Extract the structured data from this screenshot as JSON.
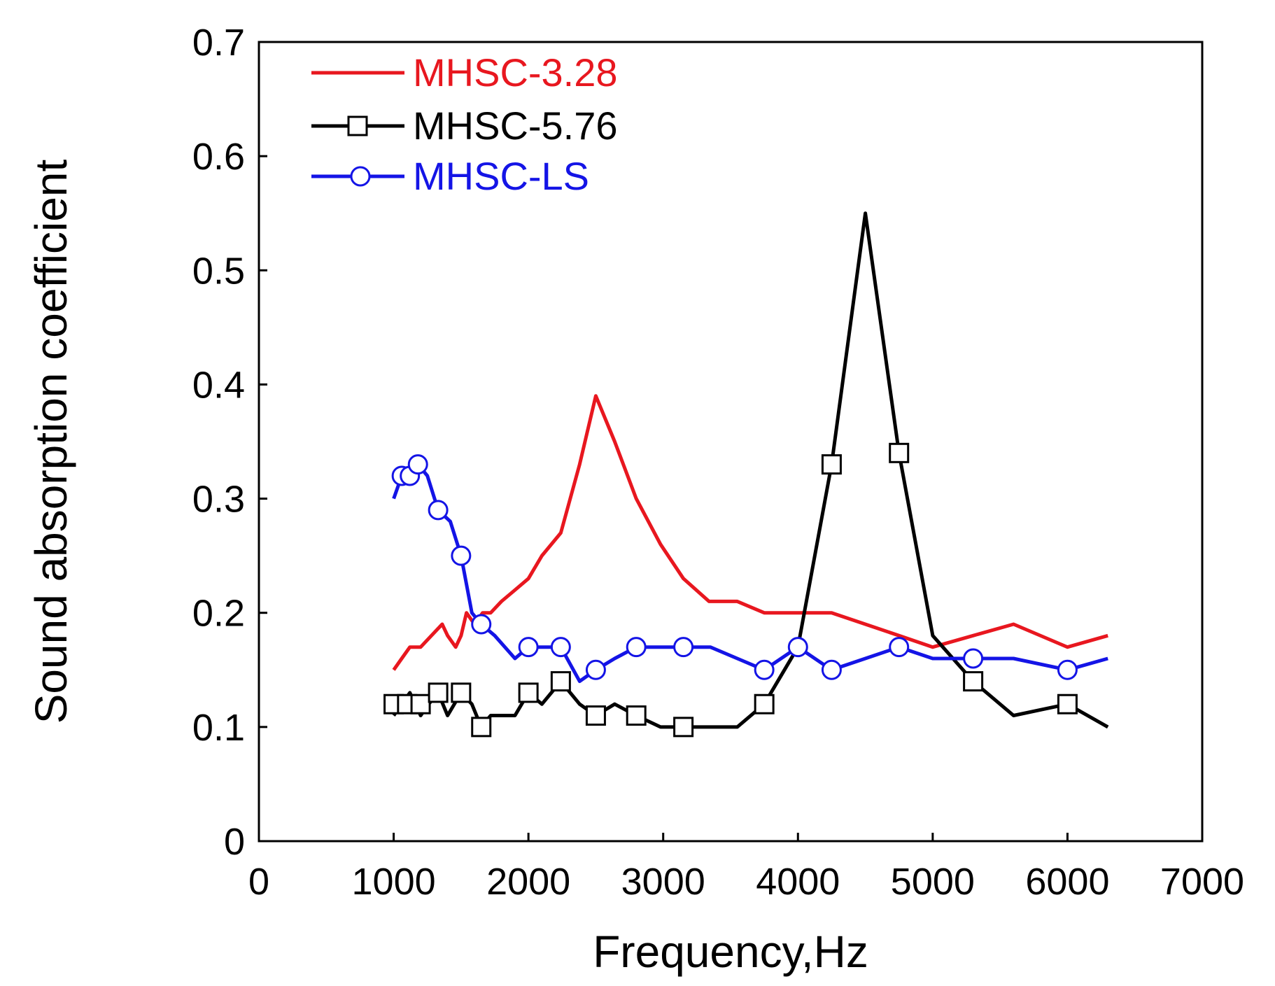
{
  "chart_data": {
    "type": "line",
    "title": "",
    "xlabel": "Frequency,Hz",
    "ylabel": "Sound absorption coefficient",
    "xlim": [
      0,
      7000
    ],
    "ylim": [
      0,
      0.7
    ],
    "xticks": [
      0,
      1000,
      2000,
      3000,
      4000,
      5000,
      6000,
      7000
    ],
    "yticks": [
      0,
      0.1,
      0.2,
      0.3,
      0.4,
      0.5,
      0.6,
      0.7
    ],
    "xtick_labels": [
      "0",
      "1000",
      "2000",
      "3000",
      "4000",
      "5000",
      "6000",
      "7000"
    ],
    "ytick_labels": [
      "0",
      "0.1",
      "0.2",
      "0.3",
      "0.4",
      "0.5",
      "0.6",
      "0.7"
    ],
    "grid": false,
    "legend_position": "top-left",
    "series": [
      {
        "name": "MHSC-3.28",
        "color": "#e8171f",
        "marker": "none",
        "x": [
          1000,
          1060,
          1120,
          1200,
          1280,
          1360,
          1400,
          1460,
          1500,
          1540,
          1600,
          1660,
          1720,
          1800,
          1900,
          2000,
          2100,
          2240,
          2380,
          2500,
          2640,
          2800,
          2980,
          3150,
          3340,
          3550,
          3750,
          4000,
          4250,
          4500,
          4750,
          5000,
          5300,
          5600,
          6000,
          6300
        ],
        "values": [
          0.15,
          0.16,
          0.17,
          0.17,
          0.18,
          0.19,
          0.18,
          0.17,
          0.18,
          0.2,
          0.19,
          0.2,
          0.2,
          0.21,
          0.22,
          0.23,
          0.25,
          0.27,
          0.33,
          0.39,
          0.35,
          0.3,
          0.26,
          0.23,
          0.21,
          0.21,
          0.2,
          0.2,
          0.2,
          0.19,
          0.18,
          0.17,
          0.18,
          0.19,
          0.17,
          0.18
        ]
      },
      {
        "name": "MHSC-5.76",
        "color": "#000000",
        "marker": "square",
        "x": [
          1000,
          1060,
          1120,
          1200,
          1260,
          1330,
          1400,
          1500,
          1580,
          1650,
          1720,
          1800,
          1900,
          2000,
          2100,
          2240,
          2380,
          2500,
          2640,
          2800,
          2980,
          3150,
          3350,
          3550,
          3750,
          4000,
          4250,
          4500,
          4750,
          5000,
          5300,
          5600,
          6000,
          6300
        ],
        "values": [
          0.11,
          0.12,
          0.13,
          0.11,
          0.12,
          0.13,
          0.11,
          0.13,
          0.12,
          0.1,
          0.11,
          0.11,
          0.11,
          0.13,
          0.12,
          0.14,
          0.12,
          0.11,
          0.12,
          0.11,
          0.1,
          0.1,
          0.1,
          0.1,
          0.12,
          0.17,
          0.33,
          0.55,
          0.34,
          0.18,
          0.14,
          0.11,
          0.12,
          0.1
        ],
        "marker_x": [
          1000,
          1100,
          1200,
          1330,
          1500,
          1650,
          2000,
          2240,
          2500,
          2800,
          3150,
          3750,
          4250,
          4750,
          5300,
          6000
        ],
        "marker_values": [
          0.12,
          0.12,
          0.12,
          0.13,
          0.13,
          0.1,
          0.13,
          0.14,
          0.11,
          0.11,
          0.1,
          0.12,
          0.33,
          0.34,
          0.14,
          0.12
        ]
      },
      {
        "name": "MHSC-LS",
        "color": "#1414e6",
        "marker": "circle",
        "x": [
          1000,
          1060,
          1120,
          1180,
          1250,
          1330,
          1420,
          1500,
          1580,
          1650,
          1750,
          1900,
          2000,
          2120,
          2240,
          2380,
          2500,
          2640,
          2800,
          3000,
          3150,
          3350,
          3550,
          3750,
          4000,
          4250,
          4500,
          4750,
          5000,
          5300,
          5600,
          6000,
          6300
        ],
        "values": [
          0.3,
          0.32,
          0.32,
          0.33,
          0.32,
          0.29,
          0.28,
          0.25,
          0.2,
          0.19,
          0.18,
          0.16,
          0.17,
          0.17,
          0.17,
          0.14,
          0.15,
          0.16,
          0.17,
          0.17,
          0.17,
          0.17,
          0.16,
          0.15,
          0.17,
          0.15,
          0.16,
          0.17,
          0.16,
          0.16,
          0.16,
          0.15,
          0.16
        ],
        "marker_x": [
          1060,
          1120,
          1180,
          1330,
          1500,
          1650,
          2000,
          2240,
          2500,
          2800,
          3150,
          3750,
          4000,
          4250,
          4750,
          5300,
          6000
        ],
        "marker_values": [
          0.32,
          0.32,
          0.33,
          0.29,
          0.25,
          0.19,
          0.17,
          0.17,
          0.15,
          0.17,
          0.17,
          0.15,
          0.17,
          0.15,
          0.17,
          0.16,
          0.15
        ]
      }
    ]
  }
}
